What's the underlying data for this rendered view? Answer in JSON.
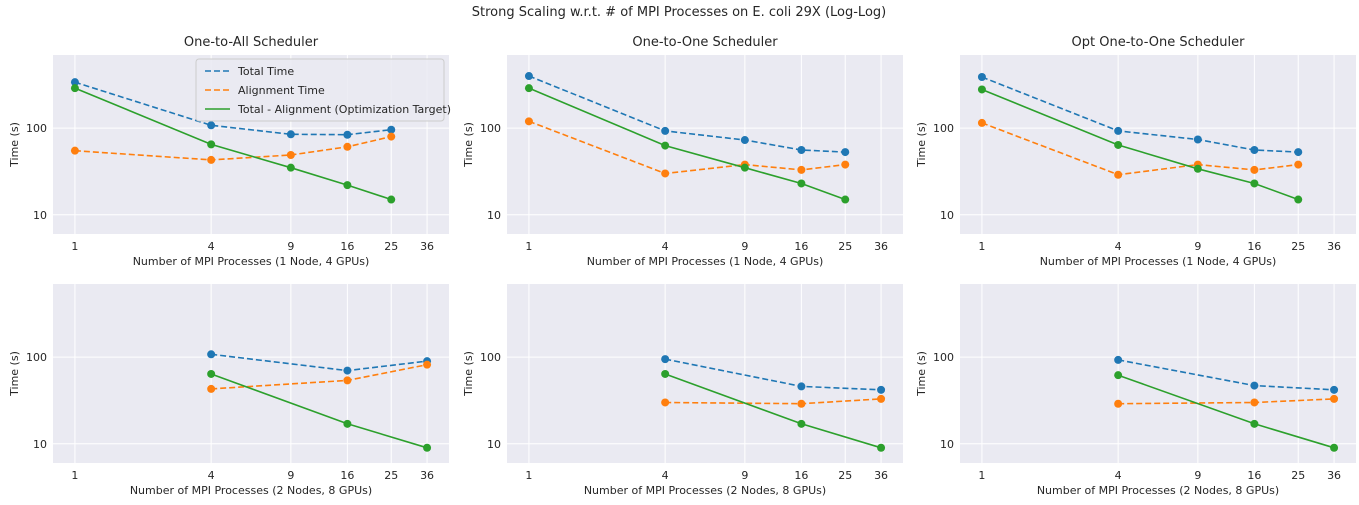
{
  "figure": {
    "title": "Strong Scaling w.r.t. # of MPI Processes on E. coli 29X (Log-Log)"
  },
  "colors": {
    "total": "#1f77b4",
    "alignment": "#ff7f0e",
    "target": "#2ca02c",
    "panel_bg": "#eaeaf2",
    "grid": "#ffffff"
  },
  "chart_data": [
    {
      "type": "line",
      "title": "One-to-All Scheduler",
      "xlabel": "Number of MPI Processes (1 Node, 4 GPUs)",
      "ylabel": "Time (s)",
      "x_scale": "log",
      "y_scale": "log",
      "xlim": [
        0.8,
        45
      ],
      "ylim": [
        6,
        700
      ],
      "xticks": [
        1,
        4,
        9,
        16,
        25,
        36
      ],
      "yticks": [
        10,
        100
      ],
      "grid": true,
      "legend": "top-right",
      "x": [
        1,
        4,
        9,
        16,
        25
      ],
      "series": [
        {
          "name": "Total Time",
          "style": "dashed",
          "color_key": "total",
          "values": [
            340,
            108,
            85,
            84,
            96
          ]
        },
        {
          "name": "Alignment Time",
          "style": "dashed",
          "color_key": "alignment",
          "values": [
            55,
            43,
            49,
            61,
            80
          ]
        },
        {
          "name": "Total - Alignment (Optimization Target)",
          "style": "solid",
          "color_key": "target",
          "values": [
            290,
            65,
            35,
            22,
            15
          ]
        }
      ]
    },
    {
      "type": "line",
      "title": "One-to-One Scheduler",
      "xlabel": "Number of MPI Processes (1 Node, 4 GPUs)",
      "ylabel": "Time (s)",
      "x_scale": "log",
      "y_scale": "log",
      "xlim": [
        0.8,
        45
      ],
      "ylim": [
        6,
        700
      ],
      "xticks": [
        1,
        4,
        9,
        16,
        25,
        36
      ],
      "yticks": [
        10,
        100
      ],
      "grid": true,
      "x": [
        1,
        4,
        9,
        16,
        25
      ],
      "series": [
        {
          "style": "dashed",
          "color_key": "total",
          "values": [
            400,
            93,
            73,
            56,
            53
          ]
        },
        {
          "style": "dashed",
          "color_key": "alignment",
          "values": [
            120,
            30,
            38,
            33,
            38
          ]
        },
        {
          "style": "solid",
          "color_key": "target",
          "values": [
            290,
            63,
            35,
            23,
            15
          ]
        }
      ]
    },
    {
      "type": "line",
      "title": "Opt One-to-One Scheduler",
      "xlabel": "Number of MPI Processes (1 Node, 4 GPUs)",
      "ylabel": "Time (s)",
      "x_scale": "log",
      "y_scale": "log",
      "xlim": [
        0.8,
        45
      ],
      "ylim": [
        6,
        700
      ],
      "xticks": [
        1,
        4,
        9,
        16,
        25,
        36
      ],
      "yticks": [
        10,
        100
      ],
      "grid": true,
      "x": [
        1,
        4,
        9,
        16,
        25
      ],
      "series": [
        {
          "style": "dashed",
          "color_key": "total",
          "values": [
            390,
            93,
            74,
            56,
            53
          ]
        },
        {
          "style": "dashed",
          "color_key": "alignment",
          "values": [
            115,
            29,
            38,
            33,
            38
          ]
        },
        {
          "style": "solid",
          "color_key": "target",
          "values": [
            280,
            64,
            34,
            23,
            15
          ]
        }
      ]
    },
    {
      "type": "line",
      "title": "",
      "xlabel": "Number of MPI Processes (2 Nodes, 8 GPUs)",
      "ylabel": "Time (s)",
      "x_scale": "log",
      "y_scale": "log",
      "xlim": [
        0.8,
        45
      ],
      "ylim": [
        6,
        700
      ],
      "xticks": [
        1,
        4,
        9,
        16,
        25,
        36
      ],
      "yticks": [
        10,
        100
      ],
      "grid": true,
      "x": [
        4,
        16,
        36
      ],
      "series": [
        {
          "style": "dashed",
          "color_key": "total",
          "values": [
            108,
            70,
            90
          ]
        },
        {
          "style": "dashed",
          "color_key": "alignment",
          "values": [
            43,
            54,
            82
          ]
        },
        {
          "style": "solid",
          "color_key": "target",
          "values": [
            64,
            17,
            9
          ]
        }
      ]
    },
    {
      "type": "line",
      "title": "",
      "xlabel": "Number of MPI Processes (2 Nodes, 8 GPUs)",
      "ylabel": "Time (s)",
      "x_scale": "log",
      "y_scale": "log",
      "xlim": [
        0.8,
        45
      ],
      "ylim": [
        6,
        700
      ],
      "xticks": [
        1,
        4,
        9,
        16,
        25,
        36
      ],
      "yticks": [
        10,
        100
      ],
      "grid": true,
      "x": [
        4,
        16,
        36
      ],
      "series": [
        {
          "style": "dashed",
          "color_key": "total",
          "values": [
            95,
            46,
            42
          ]
        },
        {
          "style": "dashed",
          "color_key": "alignment",
          "values": [
            30,
            29,
            33
          ]
        },
        {
          "style": "solid",
          "color_key": "target",
          "values": [
            64,
            17,
            9
          ]
        }
      ]
    },
    {
      "type": "line",
      "title": "",
      "xlabel": "Number of MPI Processes (2 Nodes, 8 GPUs)",
      "ylabel": "Time (s)",
      "x_scale": "log",
      "y_scale": "log",
      "xlim": [
        0.8,
        45
      ],
      "ylim": [
        6,
        700
      ],
      "xticks": [
        1,
        4,
        9,
        16,
        25,
        36
      ],
      "yticks": [
        10,
        100
      ],
      "grid": true,
      "x": [
        4,
        16,
        36
      ],
      "series": [
        {
          "style": "dashed",
          "color_key": "total",
          "values": [
            93,
            47,
            42
          ]
        },
        {
          "style": "dashed",
          "color_key": "alignment",
          "values": [
            29,
            30,
            33
          ]
        },
        {
          "style": "solid",
          "color_key": "target",
          "values": [
            62,
            17,
            9
          ]
        }
      ]
    }
  ]
}
